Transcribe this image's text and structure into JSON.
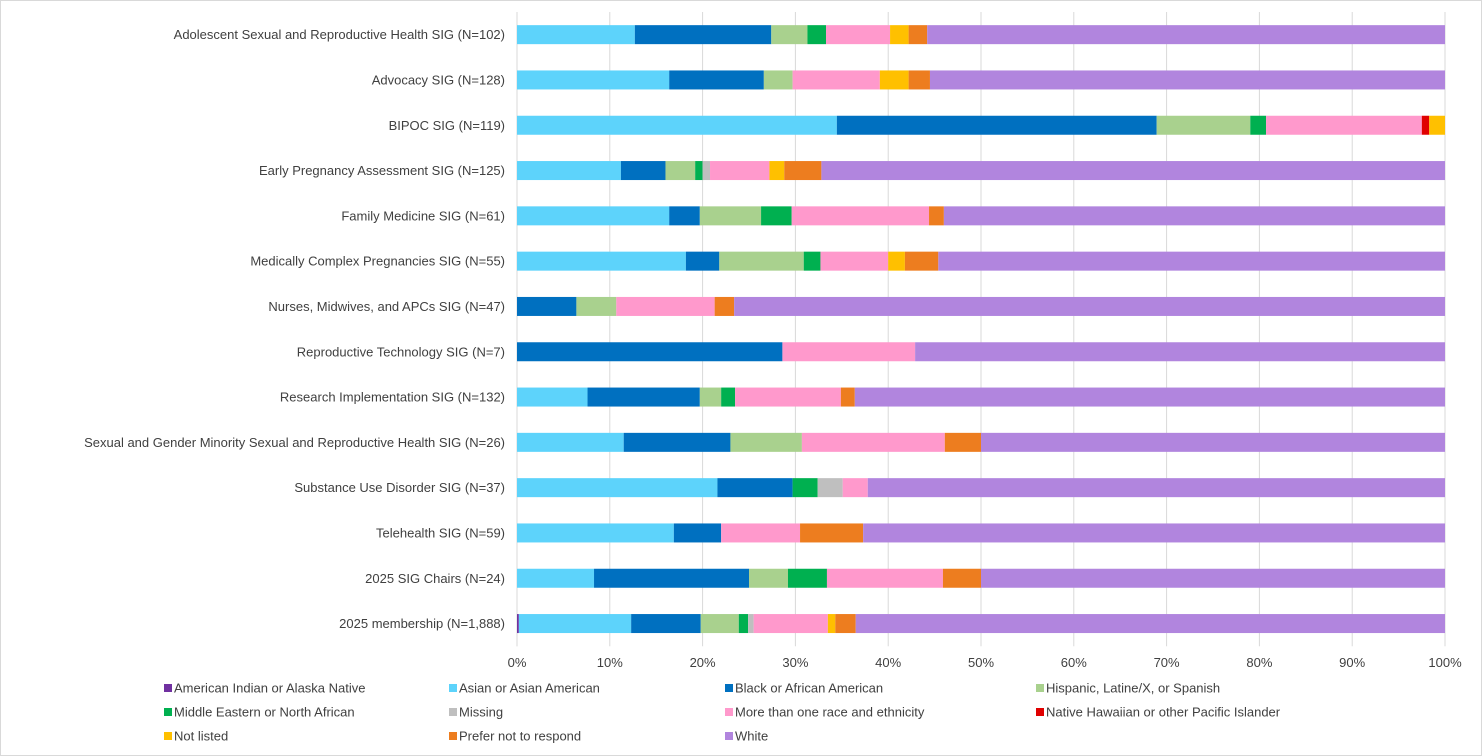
{
  "chart_data": {
    "type": "bar",
    "orientation": "horizontal",
    "stacked": "percent",
    "title": "",
    "xlabel": "",
    "ylabel": "",
    "xlim": [
      0,
      100
    ],
    "x_ticks": [
      "0%",
      "10%",
      "20%",
      "30%",
      "40%",
      "50%",
      "60%",
      "70%",
      "80%",
      "90%",
      "100%"
    ],
    "grid": "vertical",
    "legend_position": "bottom",
    "categories": [
      "Adolescent Sexual and Reproductive Health SIG (N=102)",
      "Advocacy SIG (N=128)",
      "BIPOC SIG (N=119)",
      "Early Pregnancy Assessment SIG (N=125)",
      "Family Medicine SIG (N=61)",
      "Medically Complex Pregnancies SIG (N=55)",
      "Nurses, Midwives, and APCs SIG (N=47)",
      "Reproductive Technology SIG (N=7)",
      "Research Implementation SIG (N=132)",
      "Sexual and Gender Minority Sexual and Reproductive Health SIG (N=26)",
      "Substance Use Disorder SIG (N=37)",
      "Telehealth SIG (N=59)",
      "2025 SIG Chairs (N=24)",
      "2025 membership (N=1,888)"
    ],
    "series": [
      {
        "name": "American Indian or Alaska Native",
        "color": "#7030a0",
        "values": [
          0,
          0,
          0,
          0,
          0,
          0,
          0,
          0,
          0,
          0,
          0,
          0,
          0,
          0.2
        ]
      },
      {
        "name": "Asian or Asian American",
        "color": "#5dd3fb",
        "values": [
          12.7,
          16.4,
          34.5,
          11.2,
          16.4,
          18.2,
          0,
          0,
          7.6,
          11.5,
          21.6,
          16.9,
          8.3,
          12.1
        ]
      },
      {
        "name": "Black or African American",
        "color": "#0070c0",
        "values": [
          14.7,
          10.2,
          34.5,
          4.8,
          3.3,
          3.6,
          6.4,
          28.6,
          12.1,
          11.5,
          8.1,
          5.1,
          16.7,
          7.5
        ]
      },
      {
        "name": "Hispanic, Latine/X, or Spanish",
        "color": "#a9d18e",
        "values": [
          3.9,
          3.1,
          10.1,
          3.2,
          6.6,
          9.1,
          4.3,
          0,
          2.3,
          7.7,
          0,
          0,
          4.2,
          4.1
        ]
      },
      {
        "name": "Middle Eastern or North African",
        "color": "#00b050",
        "values": [
          2.0,
          0,
          1.7,
          0.8,
          3.3,
          1.8,
          0,
          0,
          1.5,
          0,
          2.7,
          0,
          4.2,
          1.0
        ]
      },
      {
        "name": "Missing",
        "color": "#bfbfbf",
        "values": [
          0,
          0,
          0,
          0.8,
          0,
          0,
          0,
          0,
          0,
          0,
          2.7,
          0,
          0,
          0.6
        ]
      },
      {
        "name": "More than one race and ethnicity",
        "color": "#ff99cc",
        "values": [
          6.9,
          9.4,
          16.8,
          6.4,
          14.8,
          7.3,
          10.6,
          14.3,
          11.4,
          15.4,
          2.7,
          8.5,
          12.5,
          8.0
        ]
      },
      {
        "name": "Native Hawaiian or other Pacific Islander",
        "color": "#e00000",
        "values": [
          0,
          0,
          0.8,
          0,
          0,
          0,
          0,
          0,
          0,
          0,
          0,
          0,
          0,
          0
        ]
      },
      {
        "name": "Not listed",
        "color": "#ffc000",
        "values": [
          2.0,
          3.1,
          1.7,
          1.6,
          0,
          1.8,
          0,
          0,
          0,
          0,
          0,
          0,
          0,
          0.8
        ]
      },
      {
        "name": "Prefer not to respond",
        "color": "#ed7d1f",
        "values": [
          2.0,
          2.3,
          0,
          4.0,
          1.6,
          3.6,
          2.1,
          0,
          1.5,
          3.9,
          0,
          6.8,
          4.1,
          2.2
        ]
      },
      {
        "name": "White",
        "color": "#b185de",
        "values": [
          55.8,
          55.5,
          0,
          67.2,
          54.0,
          54.6,
          76.6,
          57.1,
          63.6,
          50.0,
          62.2,
          62.7,
          50.0,
          63.5
        ]
      }
    ]
  }
}
